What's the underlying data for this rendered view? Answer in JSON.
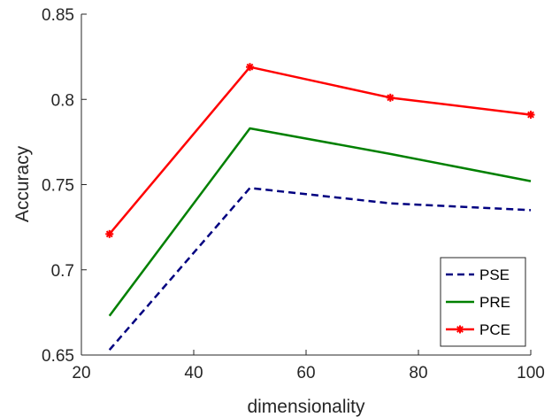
{
  "chart_data": {
    "type": "line",
    "xlabel": "dimensionality",
    "ylabel": "Accuracy",
    "xlim": [
      20,
      100
    ],
    "ylim": [
      0.65,
      0.85
    ],
    "xticks": [
      20,
      40,
      60,
      80,
      100
    ],
    "xtick_labels": [
      "20",
      "40",
      "60",
      "80",
      "100"
    ],
    "yticks": [
      0.65,
      0.7,
      0.75,
      0.8,
      0.85
    ],
    "ytick_labels": [
      "0.65",
      "0.7",
      "0.75",
      "0.8",
      "0.85"
    ],
    "grid": false,
    "legend_position": "bottom-right",
    "series": [
      {
        "name": "PSE",
        "x": [
          25,
          50,
          75,
          100
        ],
        "values": [
          0.653,
          0.748,
          0.739,
          0.735
        ],
        "color": "#000080",
        "style": "dashed",
        "marker": "none"
      },
      {
        "name": "PRE",
        "x": [
          25,
          50,
          75,
          100
        ],
        "values": [
          0.673,
          0.783,
          0.768,
          0.752
        ],
        "color": "#008000",
        "style": "solid",
        "marker": "none"
      },
      {
        "name": "PCE",
        "x": [
          25,
          50,
          75,
          100
        ],
        "values": [
          0.721,
          0.819,
          0.801,
          0.791
        ],
        "color": "#ff0000",
        "style": "solid",
        "marker": "asterisk"
      }
    ]
  }
}
